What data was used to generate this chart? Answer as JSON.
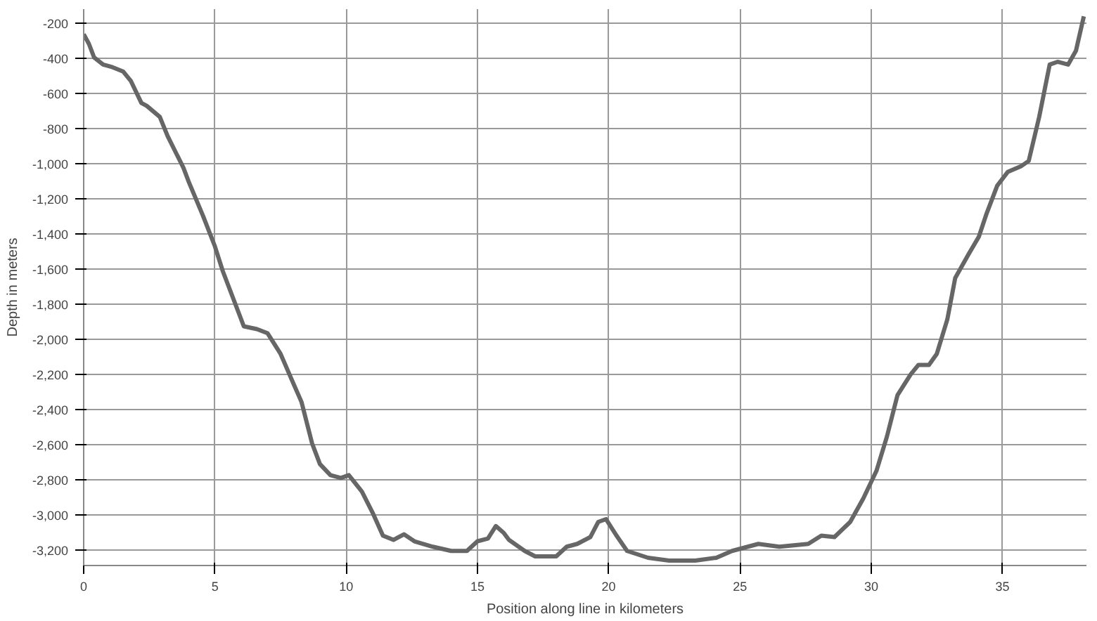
{
  "chart_data": {
    "type": "line",
    "xlabel": "Position along line in kilometers",
    "ylabel": "Depth in meters",
    "x": [
      0,
      0.2,
      0.4,
      0.74,
      1.1,
      1.5,
      1.8,
      2.2,
      2.4,
      2.9,
      3.2,
      3.8,
      4.0,
      4.55,
      5.0,
      5.3,
      5.8,
      6.1,
      6.6,
      7.0,
      7.5,
      8.0,
      8.3,
      8.7,
      9.0,
      9.4,
      9.8,
      10.1,
      10.6,
      11.0,
      11.4,
      11.8,
      12.2,
      12.6,
      13.3,
      14.0,
      14.6,
      15.0,
      15.4,
      15.7,
      16.0,
      16.2,
      16.8,
      17.2,
      18.0,
      18.4,
      18.8,
      19.3,
      19.6,
      19.9,
      20.3,
      20.7,
      21.5,
      22.3,
      23.3,
      24.1,
      24.7,
      25.3,
      25.7,
      26.5,
      27.6,
      28.1,
      28.6,
      29.2,
      29.7,
      30.2,
      30.6,
      31.0,
      31.5,
      31.8,
      32.2,
      32.5,
      32.9,
      33.2,
      33.7,
      34.1,
      34.4,
      34.8,
      35.2,
      35.7,
      36.0,
      36.4,
      36.8,
      37.1,
      37.5,
      37.8,
      38.1
    ],
    "series": [
      {
        "color": "#666666",
        "values": [
          -263,
          -318,
          -396,
          -436,
          -451,
          -475,
          -530,
          -655,
          -671,
          -734,
          -844,
          -1024,
          -1103,
          -1299,
          -1472,
          -1613,
          -1809,
          -1927,
          -1943,
          -1966,
          -2084,
          -2257,
          -2359,
          -2594,
          -2712,
          -2775,
          -2791,
          -2775,
          -2869,
          -2987,
          -3120,
          -3144,
          -3112,
          -3152,
          -3183,
          -3207,
          -3207,
          -3152,
          -3136,
          -3065,
          -3104,
          -3144,
          -3207,
          -3238,
          -3238,
          -3183,
          -3167,
          -3128,
          -3042,
          -3026,
          -3120,
          -3207,
          -3246,
          -3262,
          -3262,
          -3246,
          -3207,
          -3183,
          -3167,
          -3183,
          -3167,
          -3120,
          -3128,
          -3042,
          -2908,
          -2751,
          -2555,
          -2320,
          -2202,
          -2147,
          -2147,
          -2084,
          -1888,
          -1652,
          -1519,
          -1417,
          -1283,
          -1126,
          -1048,
          -1016,
          -985,
          -734,
          -436,
          -420,
          -436,
          -357,
          -161
        ]
      }
    ],
    "xlim": [
      0,
      38.2
    ],
    "xticks": [
      0,
      5,
      10,
      15,
      20,
      25,
      30,
      35
    ],
    "ylim": [
      -3290,
      -120
    ],
    "yticks": [
      -200,
      -400,
      -600,
      -800,
      {
        "value": -1000,
        "label": "-1,000"
      },
      {
        "value": -1200,
        "label": "-1,200"
      },
      {
        "value": -1400,
        "label": "-1,400"
      },
      {
        "value": -1600,
        "label": "-1,600"
      },
      {
        "value": -1800,
        "label": "-1,800"
      },
      {
        "value": -2000,
        "label": "-2,000"
      },
      {
        "value": -2200,
        "label": "-2,200"
      },
      {
        "value": -2400,
        "label": "-2,400"
      },
      {
        "value": -2600,
        "label": "-2,600"
      },
      {
        "value": -2800,
        "label": "-2,800"
      },
      {
        "value": -3000,
        "label": "-3,000"
      },
      {
        "value": -3200,
        "label": "-3,200"
      }
    ],
    "grid": true,
    "marker": "none",
    "line_style": "solid"
  }
}
